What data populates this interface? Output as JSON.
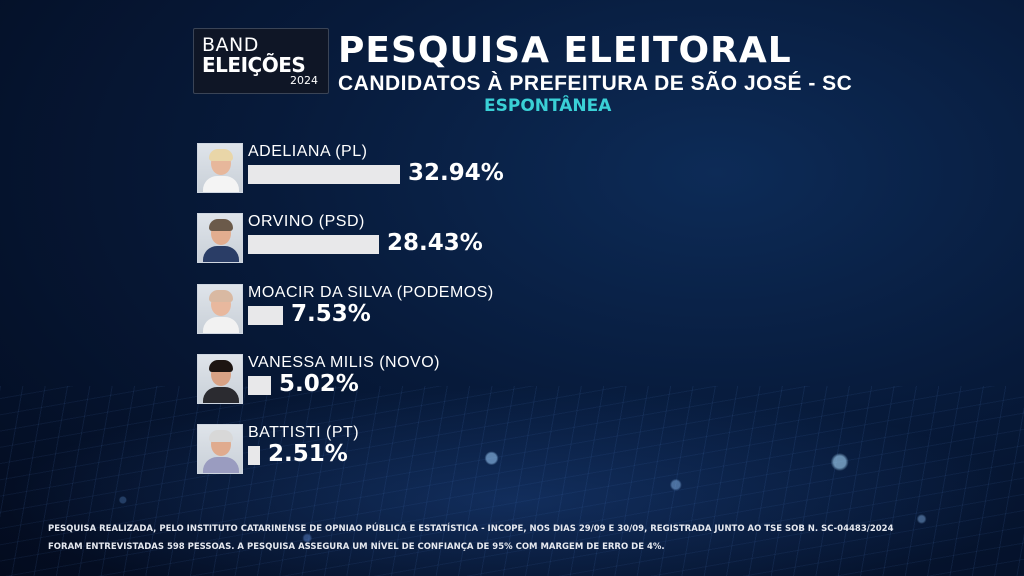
{
  "logo": {
    "line1": "BAND",
    "line2": "ELEIÇÕES",
    "year": "2024"
  },
  "header": {
    "title": "PESQUISA ELEITORAL",
    "subtitle": "CANDIDATOS À PREFEITURA DE SÃO JOSÉ - SC",
    "survey_type": "ESPONTÂNEA"
  },
  "colors": {
    "accent": "#3ad0d6",
    "bar": "#e8e8ea",
    "background": "#071a3a"
  },
  "chart_data": {
    "type": "bar",
    "orientation": "horizontal",
    "categories": [
      "ADELIANA (PL)",
      "ORVINO (PSD)",
      "MOACIR DA SILVA (PODEMOS)",
      "VANESSA MILIS (NOVO)",
      "BATTISTI (PT)"
    ],
    "values": [
      32.94,
      28.43,
      7.53,
      5.02,
      2.51
    ],
    "labels": [
      "32.94%",
      "28.43%",
      "7.53%",
      "5.02%",
      "2.51%"
    ],
    "title": "PESQUISA ELEITORAL",
    "xlabel": "",
    "ylabel": "",
    "legend": "none",
    "grid": false
  },
  "footnote": {
    "line1": "PESQUISA REALIZADA, PELO INSTITUTO CATARINENSE DE OPNIAO PÚBLICA E ESTATÍSTICA - INCOPE, NOS DIAS 29/09 E 30/09, REGISTRADA JUNTO AO TSE SOB N. SC-04483/2024",
    "line2": "FORAM ENTREVISTADAS 598 PESSOAS. A PESQUISA ASSEGURA UM NÍVEL DE CONFIANÇA DE 95% COM MARGEM DE ERRO DE 4%."
  }
}
